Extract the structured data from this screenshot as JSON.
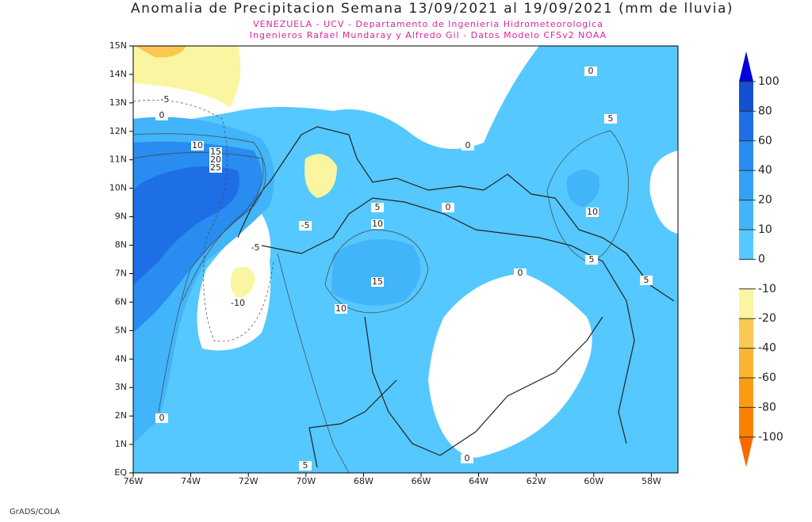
{
  "header": {
    "title": "Anomalia de Precipitacion Semana 13/09/2021 al 19/09/2021 (mm de lluvia)",
    "subtitle": [
      "VENEZUELA - UCV - Departamento de Ingenieria Hidrometeorologica",
      "Ingenieros Rafael Mundaray y Alfredo Gil - Datos Modelo CFSv2 NOAA"
    ]
  },
  "map": {
    "lat_labels": [
      "15N",
      "14N",
      "13N",
      "12N",
      "11N",
      "10N",
      "9N",
      "8N",
      "7N",
      "6N",
      "5N",
      "4N",
      "3N",
      "2N",
      "1N",
      "EQ"
    ],
    "lon_labels": [
      "76W",
      "74W",
      "72W",
      "70W",
      "68W",
      "66W",
      "64W",
      "62W",
      "60W",
      "58W"
    ],
    "contour_labels": [
      "0",
      "-5",
      "10",
      "15",
      "20",
      "25",
      "0",
      "0",
      "5",
      "10",
      "5",
      "5",
      "0",
      "0",
      "5",
      "10",
      "15",
      "10",
      "-10",
      "-5",
      "-5",
      "0",
      "5",
      "0"
    ]
  },
  "colorbar": {
    "labels": [
      "100",
      "80",
      "60",
      "40",
      "20",
      "10",
      "0",
      "-10",
      "-20",
      "-40",
      "-60",
      "-80",
      "-100"
    ],
    "colors": [
      "#0000dc",
      "#1450d2",
      "#1e6ee6",
      "#288cf0",
      "#32a0f5",
      "#41b4fa",
      "#55c8ff",
      "#ffffff",
      "#faf5a0",
      "#fac850",
      "#fab432",
      "#fa9b14",
      "#f88200",
      "#f76a00"
    ]
  },
  "footer": "GrADS/COLA"
}
